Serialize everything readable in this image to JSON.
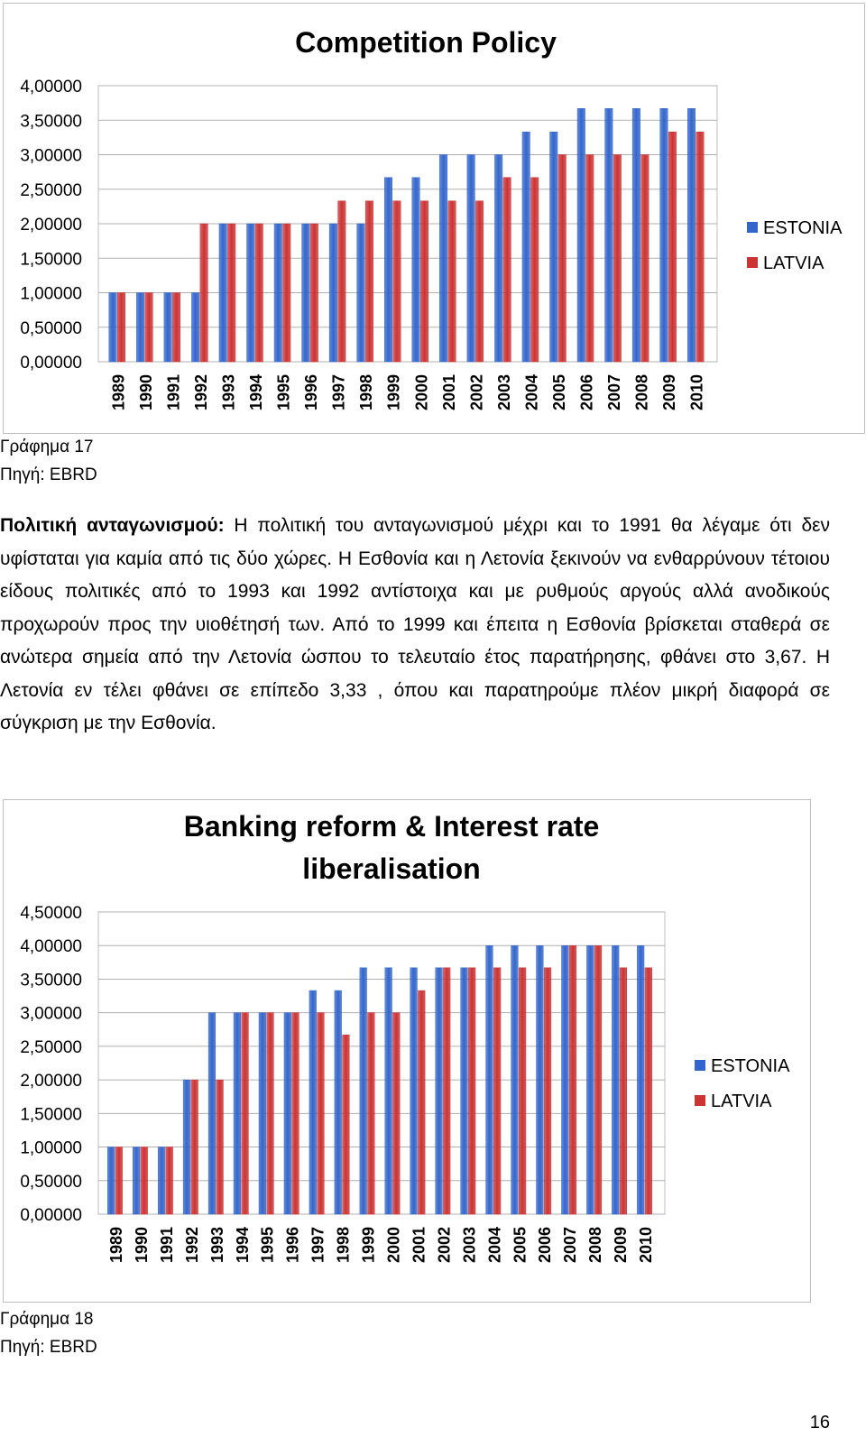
{
  "chart_data": [
    {
      "type": "bar",
      "title": [
        "Competition Policy"
      ],
      "categories": [
        "1989",
        "1990",
        "1991",
        "1992",
        "1993",
        "1994",
        "1995",
        "1996",
        "1997",
        "1998",
        "1999",
        "2000",
        "2001",
        "2002",
        "2003",
        "2004",
        "2005",
        "2006",
        "2007",
        "2008",
        "2009",
        "2010"
      ],
      "series": [
        {
          "name": "ESTONIA",
          "color": "#3366cc",
          "values": [
            1,
            1,
            1,
            1,
            2,
            2,
            2,
            2,
            2,
            2,
            2.67,
            2.67,
            3,
            3,
            3,
            3.33,
            3.33,
            3.67,
            3.67,
            3.67,
            3.67,
            3.67
          ]
        },
        {
          "name": "LATVIA",
          "color": "#cc3333",
          "values": [
            1,
            1,
            1,
            2,
            2,
            2,
            2,
            2,
            2.33,
            2.33,
            2.33,
            2.33,
            2.33,
            2.33,
            2.67,
            2.67,
            3,
            3,
            3,
            3,
            3.33,
            3.33
          ]
        }
      ],
      "yticks": [
        "0,00000",
        "0,50000",
        "1,00000",
        "1,50000",
        "2,00000",
        "2,50000",
        "3,00000",
        "3,50000",
        "4,00000"
      ],
      "ylim": [
        0,
        4
      ],
      "legend_position": "right",
      "grid": true
    },
    {
      "type": "bar",
      "title": [
        "Banking reform & Interest rate",
        "liberalisation"
      ],
      "categories": [
        "1989",
        "1990",
        "1991",
        "1992",
        "1993",
        "1994",
        "1995",
        "1996",
        "1997",
        "1998",
        "1999",
        "2000",
        "2001",
        "2002",
        "2003",
        "2004",
        "2005",
        "2006",
        "2007",
        "2008",
        "2009",
        "2010"
      ],
      "series": [
        {
          "name": "ESTONIA",
          "color": "#3366cc",
          "values": [
            1,
            1,
            1,
            2,
            3,
            3,
            3,
            3,
            3.33,
            3.33,
            3.67,
            3.67,
            3.67,
            3.67,
            3.67,
            4,
            4,
            4,
            4,
            4,
            4,
            4
          ]
        },
        {
          "name": "LATVIA",
          "color": "#cc3333",
          "values": [
            1,
            1,
            1,
            2,
            2,
            3,
            3,
            3,
            3,
            2.67,
            3,
            3,
            3.33,
            3.67,
            3.67,
            3.67,
            3.67,
            3.67,
            4,
            4,
            3.67,
            3.67
          ]
        }
      ],
      "yticks": [
        "0,00000",
        "0,50000",
        "1,00000",
        "1,50000",
        "2,00000",
        "2,50000",
        "3,00000",
        "3,50000",
        "4,00000",
        "4,50000"
      ],
      "ylim": [
        0,
        4.5
      ],
      "legend_position": "right",
      "grid": true
    }
  ],
  "captions": {
    "fig17": "Γράφημα 17",
    "source17": "Πηγή: EBRD",
    "fig18": "Γράφημα 18",
    "source18": "Πηγή: EBRD"
  },
  "paragraph": {
    "lead": "Πολιτική ανταγωνισμού:",
    "text": " Η πολιτική του ανταγωνισμού μέχρι και το 1991 θα λέγαμε ότι δεν υφίσταται για καμία από τις δύο χώρες. Η Εσθονία και η Λετονία ξεκινούν να ενθαρρύνουν τέτοιου είδους πολιτικές από το 1993 και 1992 αντίστοιχα και με ρυθμούς αργούς αλλά ανοδικούς προχωρούν προς την υιοθέτησή των. Από το 1999 και έπειτα η Εσθονία βρίσκεται σταθερά σε ανώτερα σημεία από την Λετονία ώσπου το τελευταίο έτος παρατήρησης, φθάνει στο 3,67. Η Λετονία εν τέλει φθάνει σε επίπεδο 3,33 , όπου και παρατηρούμε πλέον μικρή διαφορά σε σύγκριση με την Εσθονία."
  },
  "page_number": "16"
}
